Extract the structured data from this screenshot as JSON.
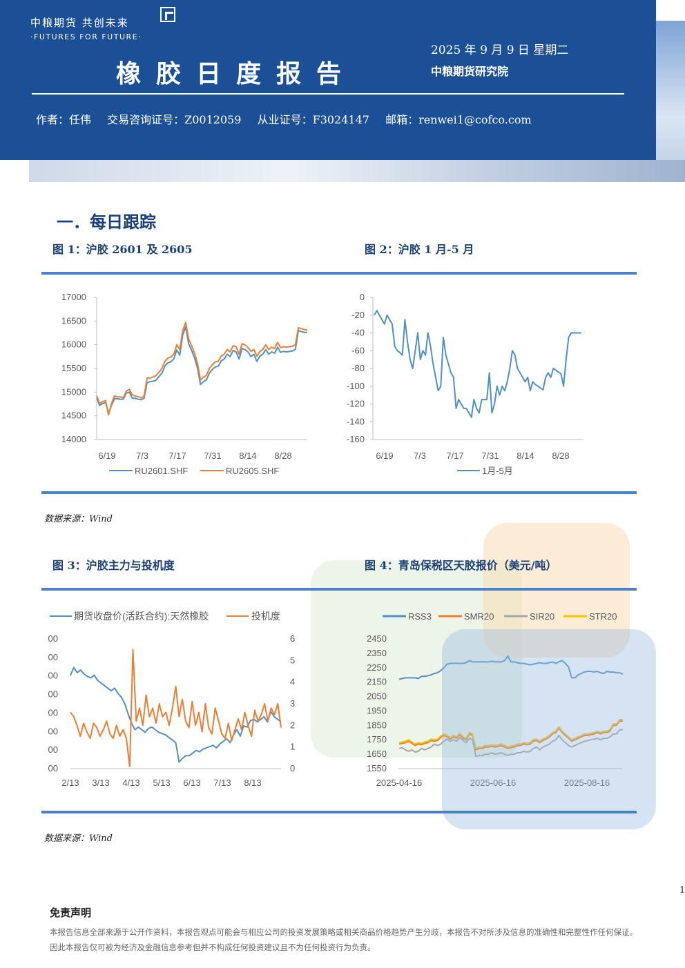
{
  "header": {
    "logo_name": "中粮期货  共创未来",
    "logo_tagline": "·FUTURES FOR FUTURE·",
    "title": "橡胶日度报告",
    "date": "2025 年 9 月 9 日  星期二",
    "org": "中粮期货研究院",
    "author": "作者：任伟",
    "license": "交易咨询证号：Z0012059",
    "practice": "从业证号：F3024147",
    "email": "邮箱：renwei1@cofco.com"
  },
  "section": {
    "title": "一．每日跟踪"
  },
  "figures": {
    "fig1_title": "图 1：沪胶 2601 及 2605",
    "fig2_title": "图 2：沪胶 1 月-5 月",
    "fig3_title": "图 3：沪胶主力与投机度",
    "fig4_title": "图 4：青岛保税区天胶报价（美元/吨）",
    "source1": "数据来源：Wind",
    "source2": "数据来源：Wind"
  },
  "footer": {
    "page": "1",
    "disclaimer_title": "免责声明",
    "disclaimer_text": "本报告信息全部来源于公开作资料，本报告观点可能会与相应公司的投资发展策略或相关商品价格趋势产生分歧，本报告不对所涉及信息的准确性和完整性作任何保证。因此本报告仅可被为经济及金融信息参考但并不构成任何投资建议且不为任何投资行为负责。"
  },
  "colors": {
    "brand": "#1b4f96",
    "accent": "#4a80c6",
    "series_blue": "#4f8fca",
    "series_orange": "#ed7d31",
    "series_gray": "#a6a6a6",
    "series_yellow": "#ffc000"
  },
  "chart_data": [
    {
      "type": "line",
      "title": "图 1：沪胶 2601 及 2605",
      "x_ticks": [
        "6/19",
        "7/3",
        "7/17",
        "7/31",
        "8/14",
        "8/28"
      ],
      "ylim": [
        14000,
        17000
      ],
      "y_ticks": [
        14000,
        14500,
        15000,
        15500,
        16000,
        16500,
        17000
      ],
      "series": [
        {
          "name": "RU2601.SHF",
          "values": [
            14880,
            14720,
            14760,
            14780,
            14560,
            14720,
            14860,
            14860,
            14850,
            14850,
            14980,
            15000,
            14870,
            14870,
            14850,
            14840,
            14870,
            15200,
            15220,
            15230,
            15250,
            15330,
            15400,
            15550,
            15620,
            15640,
            15700,
            15890,
            15780,
            16200,
            16380,
            16020,
            15880,
            15720,
            15500,
            15160,
            15220,
            15260,
            15400,
            15480,
            15530,
            15550,
            15660,
            15700,
            15800,
            15750,
            15880,
            15850,
            15700,
            15920,
            15900,
            15850,
            15750,
            15800,
            15650,
            15760,
            15800,
            15900,
            15800,
            15850,
            15820,
            15950,
            15840,
            15860,
            15850,
            15860,
            15870,
            15900,
            16300,
            16280,
            16260,
            16260
          ]
        },
        {
          "name": "RU2605.SHF",
          "values": [
            14920,
            14760,
            14800,
            14820,
            14520,
            14760,
            14920,
            14900,
            14900,
            14880,
            15020,
            15060,
            14940,
            14920,
            14900,
            14880,
            14920,
            15300,
            15300,
            15320,
            15350,
            15420,
            15500,
            15650,
            15720,
            15740,
            15800,
            16000,
            15900,
            16300,
            16470,
            16120,
            15980,
            15820,
            15600,
            15260,
            15320,
            15350,
            15500,
            15580,
            15640,
            15650,
            15760,
            15800,
            15900,
            15850,
            15980,
            15960,
            15800,
            16020,
            16000,
            15940,
            15860,
            15900,
            15760,
            15860,
            15900,
            16000,
            15900,
            15950,
            15920,
            16050,
            15940,
            15960,
            15950,
            15960,
            15970,
            16000,
            16360,
            16340,
            16320,
            16310
          ]
        }
      ]
    },
    {
      "type": "line",
      "title": "图 2：沪胶 1 月-5 月",
      "x_ticks": [
        "6/19",
        "7/3",
        "7/17",
        "7/31",
        "8/14",
        "8/28"
      ],
      "ylim": [
        -160,
        0
      ],
      "y_ticks": [
        0,
        -20,
        -40,
        -60,
        -80,
        -100,
        -120,
        -140,
        -160
      ],
      "series": [
        {
          "name": "1月-5月",
          "values": [
            -20,
            -15,
            -20,
            -25,
            -30,
            -20,
            -25,
            -30,
            -55,
            -60,
            -62,
            -65,
            -25,
            -50,
            -70,
            -80,
            -60,
            -40,
            -70,
            -60,
            -65,
            -40,
            -55,
            -75,
            -90,
            -105,
            -100,
            -45,
            -65,
            -75,
            -85,
            -90,
            -125,
            -115,
            -120,
            -125,
            -125,
            -130,
            -135,
            -115,
            -125,
            -130,
            -115,
            -115,
            -115,
            -85,
            -130,
            -120,
            -100,
            -110,
            -100,
            -105,
            -95,
            -80,
            -60,
            -65,
            -80,
            -85,
            -90,
            -95,
            -90,
            -105,
            -95,
            -98,
            -100,
            -102,
            -104,
            -90,
            -85,
            -90,
            -80,
            -82,
            -84,
            -86,
            -100,
            -70,
            -45,
            -40,
            -40,
            -40,
            -40,
            -40
          ]
        }
      ]
    },
    {
      "type": "line",
      "title": "图 3：沪胶主力与投机度",
      "x_ticks": [
        "2/13",
        "3/13",
        "4/13",
        "5/13",
        "6/13",
        "7/13",
        "8/13"
      ],
      "left_y_ticks": [
        "00",
        "00",
        "00",
        "00",
        "00",
        "00",
        "00",
        "00"
      ],
      "right_ylim": [
        0,
        6
      ],
      "right_y_ticks": [
        0,
        1,
        2,
        3,
        4,
        5,
        6
      ],
      "series": [
        {
          "name": "期货收盘价(活跃合约):天然橡胶",
          "axis": "left",
          "values": [
            0.72,
            0.78,
            0.74,
            0.76,
            0.73,
            0.71,
            0.7,
            0.72,
            0.68,
            0.66,
            0.64,
            0.62,
            0.6,
            0.62,
            0.58,
            0.55,
            0.5,
            0.42,
            0.35,
            0.3,
            0.32,
            0.3,
            0.28,
            0.31,
            0.32,
            0.3,
            0.28,
            0.27,
            0.26,
            0.24,
            0.22,
            0.2,
            0.05,
            0.08,
            0.1,
            0.1,
            0.12,
            0.14,
            0.13,
            0.15,
            0.16,
            0.17,
            0.18,
            0.16,
            0.19,
            0.21,
            0.23,
            0.2,
            0.26,
            0.3,
            0.25,
            0.33,
            0.32,
            0.37,
            0.38,
            0.36,
            0.38,
            0.4,
            0.36,
            0.44,
            0.4,
            0.38,
            0.36
          ]
        },
        {
          "name": "投机度",
          "axis": "right",
          "values": [
            2.6,
            2.4,
            2.0,
            1.5,
            2.1,
            1.7,
            1.4,
            2.1,
            1.9,
            1.5,
            1.8,
            2.2,
            1.6,
            1.4,
            2.0,
            1.5,
            1.8,
            1.4,
            0.1,
            5.5,
            2.2,
            2.8,
            2.0,
            3.4,
            2.4,
            2.8,
            2.1,
            3.0,
            2.4,
            2.6,
            2.0,
            2.8,
            3.8,
            2.4,
            3.2,
            2.2,
            1.9,
            3.1,
            2.0,
            2.6,
            1.7,
            3.0,
            1.9,
            1.6,
            2.8,
            2.2,
            1.6,
            1.4,
            2.1,
            1.3,
            1.8,
            2.3,
            1.8,
            2.6,
            2.0,
            1.5,
            2.7,
            2.2,
            2.5,
            3.0,
            2.2,
            2.8,
            2.5,
            3.0,
            1.9
          ]
        }
      ]
    },
    {
      "type": "line",
      "title": "图 4：青岛保税区天胶报价（美元/吨）",
      "x_ticks": [
        "2025-04-16",
        "2025-06-16",
        "2025-08-16"
      ],
      "ylim": [
        1550,
        2450
      ],
      "y_ticks": [
        1550,
        1650,
        1750,
        1850,
        1950,
        2050,
        2150,
        2250,
        2350,
        2450
      ],
      "series": [
        {
          "name": "RSS3",
          "values": [
            2170,
            2175,
            2180,
            2180,
            2180,
            2180,
            2175,
            2190,
            2190,
            2195,
            2200,
            2210,
            2215,
            2230,
            2250,
            2275,
            2280,
            2280,
            2280,
            2280,
            2280,
            2285,
            2300,
            2290,
            2290,
            2290,
            2290,
            2290,
            2290,
            2295,
            2290,
            2290,
            2290,
            2300,
            2330,
            2290,
            2290,
            2285,
            2280,
            2280,
            2275,
            2270,
            2275,
            2280,
            2285,
            2280,
            2280,
            2285,
            2290,
            2280,
            2290,
            2300,
            2280,
            2255,
            2180,
            2180,
            2200,
            2210,
            2220,
            2225,
            2225,
            2220,
            2225,
            2215,
            2210,
            2225,
            2220,
            2220,
            2215,
            2215,
            2205
          ]
        },
        {
          "name": "SMR20",
          "values": [
            1720,
            1725,
            1730,
            1740,
            1725,
            1710,
            1720,
            1715,
            1725,
            1730,
            1745,
            1740,
            1745,
            1765,
            1780,
            1770,
            1755,
            1770,
            1760,
            1785,
            1760,
            1750,
            1790,
            1780,
            1680,
            1690,
            1690,
            1700,
            1700,
            1705,
            1700,
            1705,
            1710,
            1700,
            1690,
            1695,
            1700,
            1710,
            1710,
            1720,
            1715,
            1720,
            1740,
            1745,
            1730,
            1745,
            1755,
            1770,
            1790,
            1800,
            1830,
            1800,
            1780,
            1760,
            1740,
            1750,
            1760,
            1770,
            1780,
            1780,
            1785,
            1790,
            1800,
            1790,
            1800,
            1800,
            1810,
            1850,
            1850,
            1880,
            1880
          ]
        },
        {
          "name": "SIR20",
          "values": [
            1690,
            1695,
            1680,
            1670,
            1680,
            1665,
            1670,
            1690,
            1680,
            1690,
            1700,
            1720,
            1710,
            1720,
            1740,
            1755,
            1740,
            1750,
            1740,
            1765,
            1745,
            1730,
            1760,
            1750,
            1635,
            1640,
            1640,
            1650,
            1650,
            1660,
            1650,
            1655,
            1660,
            1650,
            1640,
            1650,
            1650,
            1660,
            1660,
            1670,
            1665,
            1670,
            1690,
            1700,
            1680,
            1700,
            1710,
            1720,
            1740,
            1750,
            1780,
            1750,
            1730,
            1710,
            1700,
            1710,
            1720,
            1730,
            1740,
            1745,
            1750,
            1755,
            1760,
            1750,
            1760,
            1760,
            1770,
            1790,
            1790,
            1820,
            1820
          ]
        },
        {
          "name": "STR20",
          "values": [
            1730,
            1735,
            1740,
            1750,
            1735,
            1720,
            1730,
            1725,
            1735,
            1740,
            1755,
            1750,
            1755,
            1775,
            1790,
            1780,
            1765,
            1780,
            1770,
            1795,
            1770,
            1760,
            1800,
            1790,
            1690,
            1700,
            1700,
            1710,
            1710,
            1715,
            1710,
            1715,
            1720,
            1710,
            1700,
            1705,
            1710,
            1720,
            1720,
            1730,
            1725,
            1730,
            1750,
            1755,
            1740,
            1755,
            1765,
            1780,
            1800,
            1810,
            1840,
            1810,
            1790,
            1770,
            1750,
            1760,
            1770,
            1780,
            1790,
            1790,
            1795,
            1800,
            1810,
            1800,
            1810,
            1810,
            1820,
            1860,
            1860,
            1890,
            1890
          ]
        }
      ]
    }
  ]
}
